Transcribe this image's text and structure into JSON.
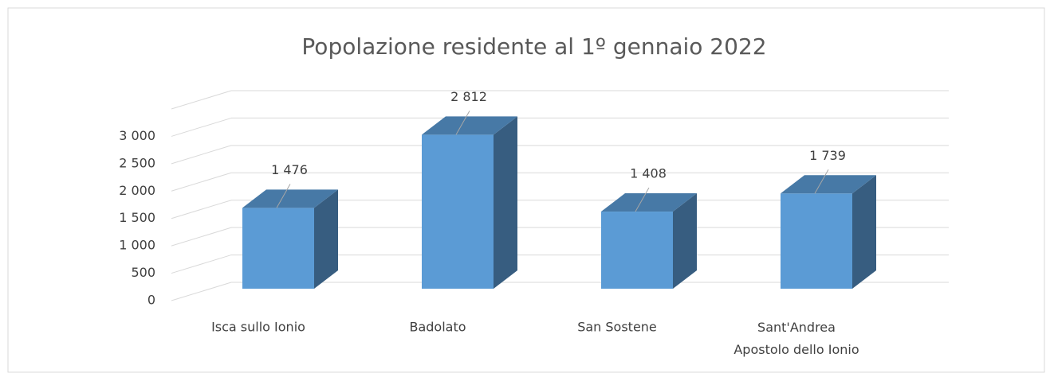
{
  "chart_data": {
    "type": "bar3d",
    "title": "Popolazione residente al 1º gennaio 2022",
    "categories": [
      "Isca sullo Ionio",
      "Badolato",
      "San Sostene",
      "Sant'Andrea Apostolo dello Ionio"
    ],
    "values": [
      1476,
      2812,
      1408,
      1739
    ],
    "value_labels": [
      "1 476",
      "2 812",
      "1 408",
      "1 739"
    ],
    "color": "#5b9bd5",
    "ylim": [
      0,
      3500
    ],
    "yticks": [
      0,
      500,
      {
        "value": 1000,
        "label": "1 000"
      },
      {
        "value": 1500,
        "label": "1 500"
      },
      {
        "value": 2000,
        "label": "2 000"
      },
      {
        "value": 2500,
        "label": "2 500"
      },
      {
        "value": 3000,
        "label": "3 000"
      }
    ],
    "grid": true
  }
}
